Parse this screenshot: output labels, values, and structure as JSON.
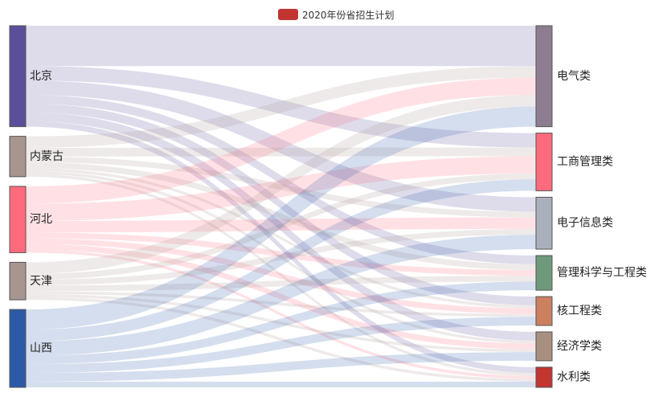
{
  "chart_data": {
    "type": "sankey",
    "legend": {
      "label": "2020年份省招生计划",
      "color": "#c23531"
    },
    "sources": [
      {
        "name": "北京",
        "color": "#5b4e9a"
      },
      {
        "name": "内蒙古",
        "color": "#a89590"
      },
      {
        "name": "河北",
        "color": "#ff6b7d"
      },
      {
        "name": "天津",
        "color": "#a89590"
      },
      {
        "name": "山西",
        "color": "#2c5aa8"
      }
    ],
    "targets": [
      {
        "name": "电气类",
        "color": "#8e7d91"
      },
      {
        "name": "工商管理类",
        "color": "#ff6b7d"
      },
      {
        "name": "电子信息类",
        "color": "#aab0bb"
      },
      {
        "name": "管理科学与工程类",
        "color": "#6e9a7c"
      },
      {
        "name": "核工程类",
        "color": "#cc8060"
      },
      {
        "name": "经济学类",
        "color": "#a89080"
      },
      {
        "name": "水利类",
        "color": "#c23531"
      }
    ],
    "links": [
      {
        "source": "北京",
        "target": "电气类",
        "value": 14
      },
      {
        "source": "北京",
        "target": "工商管理类",
        "value": 5
      },
      {
        "source": "北京",
        "target": "电子信息类",
        "value": 5
      },
      {
        "source": "北京",
        "target": "管理科学与工程类",
        "value": 3
      },
      {
        "source": "北京",
        "target": "核工程类",
        "value": 3
      },
      {
        "source": "北京",
        "target": "经济学类",
        "value": 3
      },
      {
        "source": "北京",
        "target": "水利类",
        "value": 2
      },
      {
        "source": "内蒙古",
        "target": "电气类",
        "value": 4
      },
      {
        "source": "内蒙古",
        "target": "工商管理类",
        "value": 3
      },
      {
        "source": "内蒙古",
        "target": "电子信息类",
        "value": 2
      },
      {
        "source": "内蒙古",
        "target": "管理科学与工程类",
        "value": 2
      },
      {
        "source": "内蒙古",
        "target": "核工程类",
        "value": 1
      },
      {
        "source": "内蒙古",
        "target": "经济学类",
        "value": 1
      },
      {
        "source": "内蒙古",
        "target": "水利类",
        "value": 1
      },
      {
        "source": "河北",
        "target": "电气类",
        "value": 6
      },
      {
        "source": "河北",
        "target": "工商管理类",
        "value": 6
      },
      {
        "source": "河北",
        "target": "电子信息类",
        "value": 4
      },
      {
        "source": "河北",
        "target": "管理科学与工程类",
        "value": 2
      },
      {
        "source": "河北",
        "target": "核工程类",
        "value": 2
      },
      {
        "source": "河北",
        "target": "经济学类",
        "value": 2
      },
      {
        "source": "河北",
        "target": "水利类",
        "value": 1
      },
      {
        "source": "天津",
        "target": "电气类",
        "value": 4
      },
      {
        "source": "天津",
        "target": "工商管理类",
        "value": 2
      },
      {
        "source": "天津",
        "target": "电子信息类",
        "value": 2
      },
      {
        "source": "天津",
        "target": "管理科学与工程类",
        "value": 2
      },
      {
        "source": "天津",
        "target": "核工程类",
        "value": 1
      },
      {
        "source": "天津",
        "target": "经济学类",
        "value": 1
      },
      {
        "source": "天津",
        "target": "水利类",
        "value": 1
      },
      {
        "source": "山西",
        "target": "电气类",
        "value": 7
      },
      {
        "source": "山西",
        "target": "工商管理类",
        "value": 4
      },
      {
        "source": "山西",
        "target": "电子信息类",
        "value": 5
      },
      {
        "source": "山西",
        "target": "管理科学与工程类",
        "value": 3
      },
      {
        "source": "山西",
        "target": "核工程类",
        "value": 3
      },
      {
        "source": "山西",
        "target": "经济学类",
        "value": 3
      },
      {
        "source": "山西",
        "target": "水利类",
        "value": 2
      }
    ]
  }
}
